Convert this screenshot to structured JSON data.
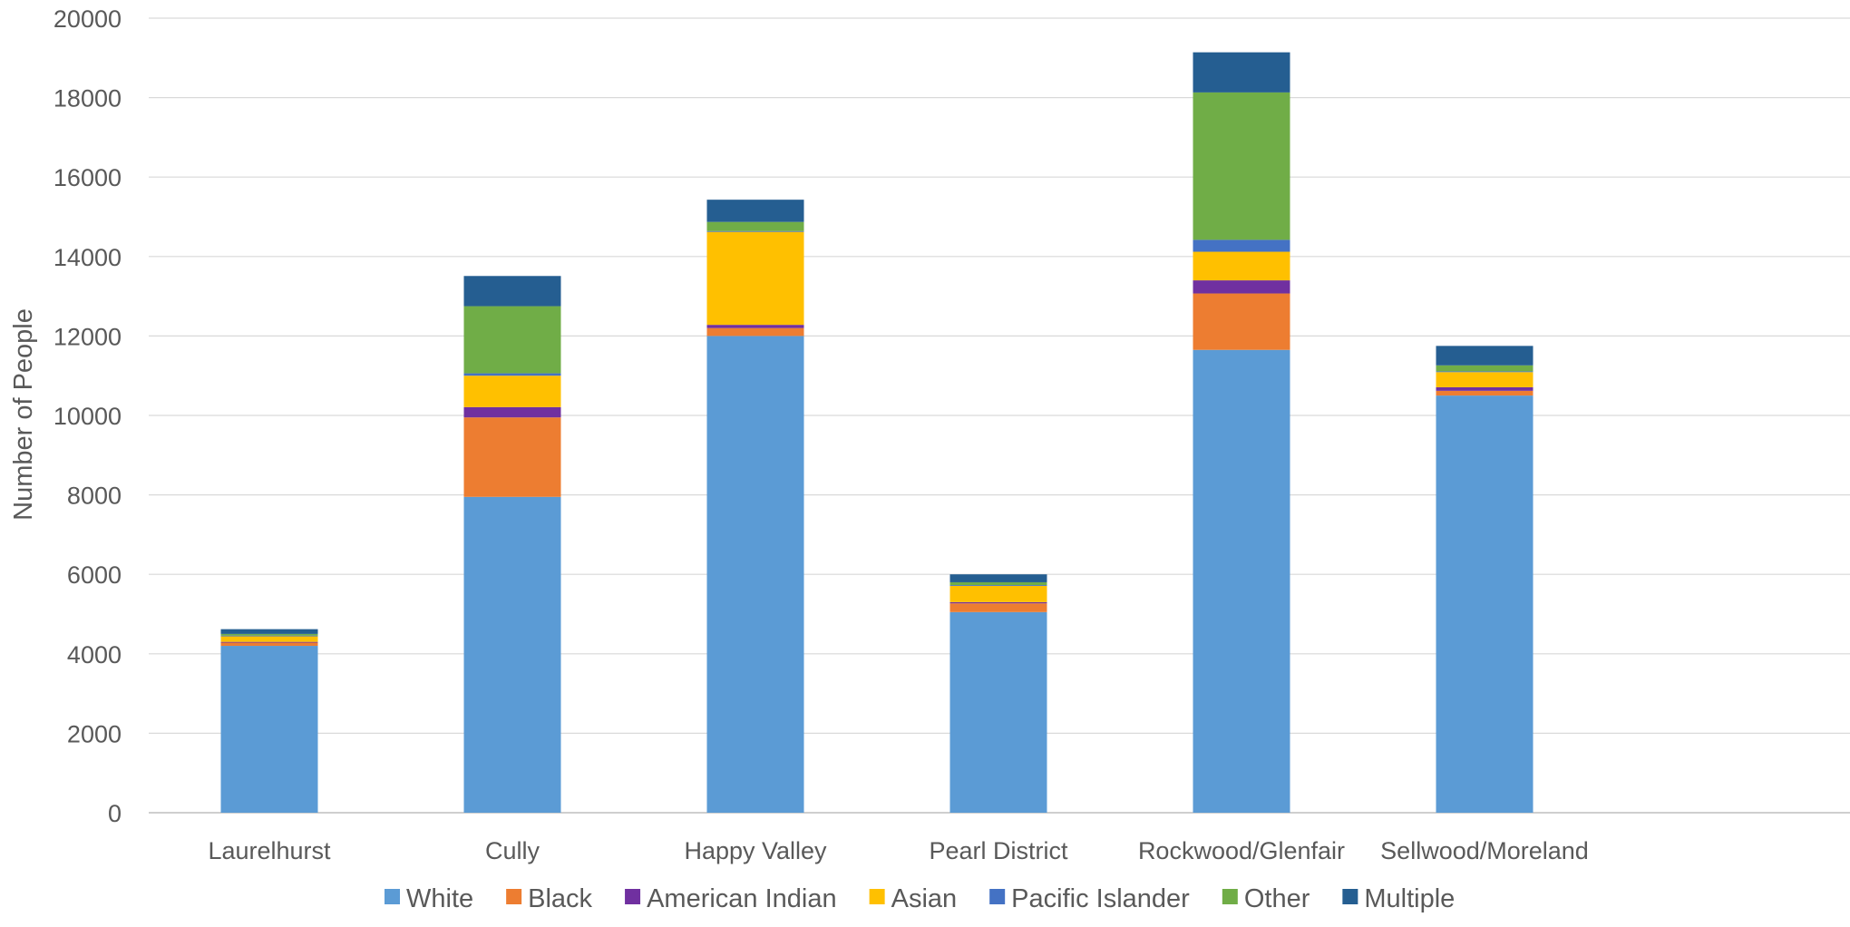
{
  "chart_data": {
    "type": "bar",
    "stacked": true,
    "title": "",
    "xlabel": "",
    "ylabel": "Number of People",
    "ylim": [
      0,
      20000
    ],
    "yticks": [
      0,
      2000,
      4000,
      6000,
      8000,
      10000,
      12000,
      14000,
      16000,
      18000,
      20000
    ],
    "grid": true,
    "legend_position": "bottom",
    "categories": [
      "Laurelhurst",
      "Cully",
      "Happy Valley",
      "Pearl District",
      "Rockwood/Glenfair",
      "Sellwood/Moreland"
    ],
    "series": [
      {
        "name": "White",
        "color": "#5B9BD5",
        "values": [
          4200,
          7950,
          12000,
          5050,
          11650,
          10500
        ]
      },
      {
        "name": "Black",
        "color": "#ED7D31",
        "values": [
          80,
          2000,
          200,
          220,
          1420,
          120
        ]
      },
      {
        "name": "American Indian",
        "color": "#7030A0",
        "values": [
          20,
          260,
          80,
          30,
          330,
          90
        ]
      },
      {
        "name": "Asian",
        "color": "#FFC000",
        "values": [
          140,
          790,
          2340,
          410,
          720,
          380
        ]
      },
      {
        "name": "Pacific Islander",
        "color": "#4472C4",
        "values": [
          20,
          60,
          20,
          20,
          300,
          20
        ]
      },
      {
        "name": "Other",
        "color": "#70AD47",
        "values": [
          40,
          1690,
          230,
          70,
          3710,
          150
        ]
      },
      {
        "name": "Multiple",
        "color": "#255E91",
        "values": [
          120,
          760,
          560,
          200,
          1010,
          490
        ]
      }
    ]
  }
}
